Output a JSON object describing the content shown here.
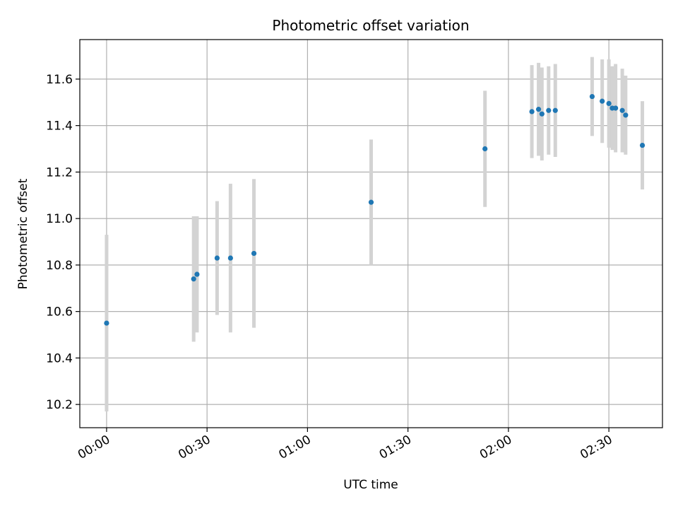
{
  "chart_data": {
    "type": "scatter",
    "title": "Photometric offset variation",
    "xlabel": "UTC time",
    "ylabel": "Photometric offset",
    "x_unit": "HH:MM",
    "xlim": [
      "-00:08",
      "02:46"
    ],
    "ylim": [
      10.1,
      11.77
    ],
    "x_ticks": [
      "00:00",
      "00:30",
      "01:00",
      "01:30",
      "02:00",
      "02:30"
    ],
    "y_ticks": [
      10.2,
      10.4,
      10.6,
      10.8,
      11.0,
      11.2,
      11.4,
      11.6
    ],
    "grid": true,
    "point_color": "#1f77b4",
    "errorbar_color": "#d3d3d3",
    "points": [
      {
        "x": "00:00",
        "y": 10.55,
        "err": 0.38
      },
      {
        "x": "00:26",
        "y": 10.74,
        "err": 0.27
      },
      {
        "x": "00:27",
        "y": 10.76,
        "err": 0.25
      },
      {
        "x": "00:33",
        "y": 10.83,
        "err": 0.245
      },
      {
        "x": "00:37",
        "y": 10.83,
        "err": 0.32
      },
      {
        "x": "00:44",
        "y": 10.85,
        "err": 0.32
      },
      {
        "x": "01:19",
        "y": 11.07,
        "err": 0.27
      },
      {
        "x": "01:53",
        "y": 11.3,
        "err": 0.25
      },
      {
        "x": "02:07",
        "y": 11.46,
        "err": 0.2
      },
      {
        "x": "02:09",
        "y": 11.47,
        "err": 0.2
      },
      {
        "x": "02:10",
        "y": 11.45,
        "err": 0.2
      },
      {
        "x": "02:12",
        "y": 11.465,
        "err": 0.19
      },
      {
        "x": "02:14",
        "y": 11.465,
        "err": 0.2
      },
      {
        "x": "02:25",
        "y": 11.525,
        "err": 0.17
      },
      {
        "x": "02:28",
        "y": 11.505,
        "err": 0.18
      },
      {
        "x": "02:30",
        "y": 11.495,
        "err": 0.19
      },
      {
        "x": "02:31",
        "y": 11.475,
        "err": 0.18
      },
      {
        "x": "02:32",
        "y": 11.475,
        "err": 0.19
      },
      {
        "x": "02:34",
        "y": 11.465,
        "err": 0.18
      },
      {
        "x": "02:35",
        "y": 11.445,
        "err": 0.17
      },
      {
        "x": "02:40",
        "y": 11.315,
        "err": 0.19
      }
    ]
  }
}
